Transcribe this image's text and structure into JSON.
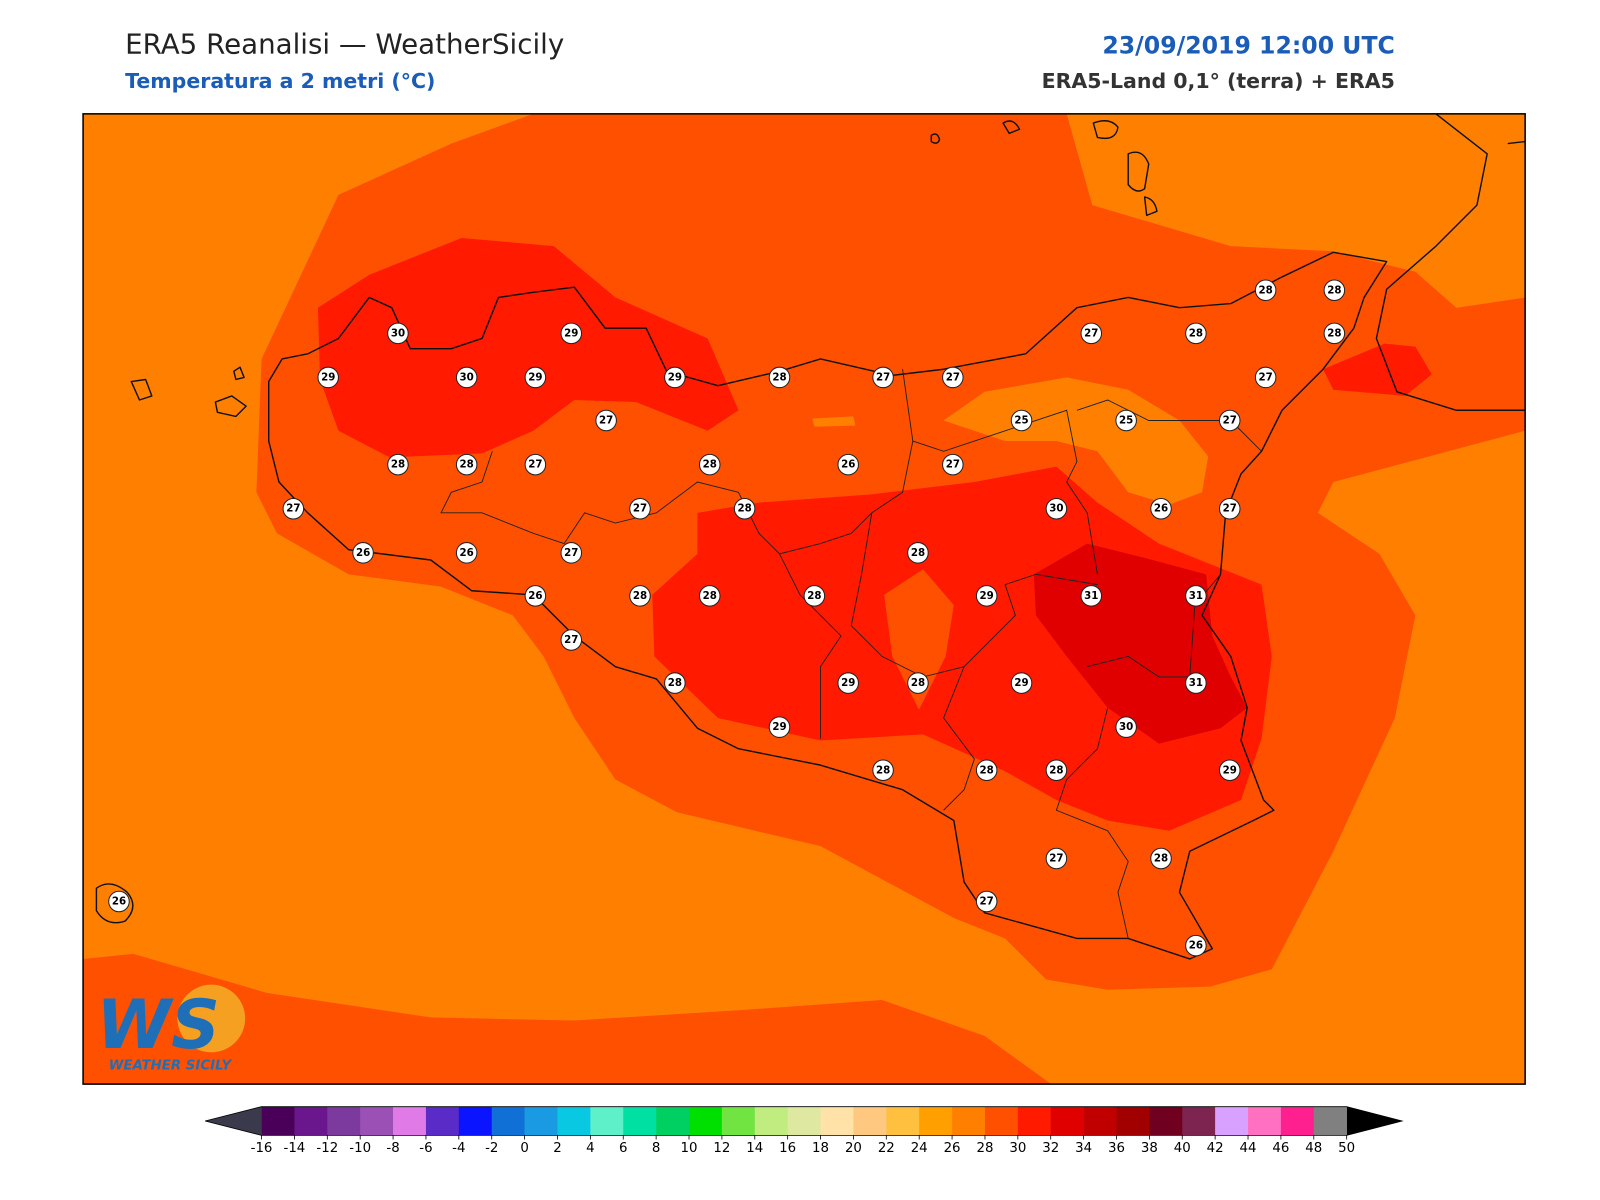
{
  "header": {
    "title": "ERA5 Reanalisi — WeatherSicily",
    "subtitle": "Temperatura a 2 metri (°C)",
    "datetime": "23/09/2019 12:00 UTC",
    "source": "ERA5-Land 0,1° (terra) + ERA5"
  },
  "map": {
    "station_values": [
      30,
      29,
      29,
      30,
      29,
      29,
      28,
      27,
      27,
      27,
      28,
      28,
      28,
      28,
      27,
      27,
      25,
      25,
      27,
      28,
      28,
      27,
      28,
      26,
      27,
      27,
      27,
      28,
      30,
      26,
      27,
      26,
      26,
      27,
      28,
      26,
      28,
      28,
      28,
      29,
      31,
      31,
      27,
      28,
      29,
      28,
      29,
      31,
      30,
      29,
      28,
      28,
      28,
      29,
      27,
      28,
      27,
      26,
      26
    ]
  },
  "logo": {
    "mark": "WS",
    "name": "WEATHER SICILY"
  },
  "colorbar": {
    "ticks": [
      -16,
      -14,
      -12,
      -10,
      -8,
      -6,
      -4,
      -2,
      0,
      2,
      4,
      6,
      8,
      10,
      12,
      14,
      16,
      18,
      20,
      22,
      24,
      26,
      28,
      30,
      32,
      34,
      36,
      38,
      40,
      42,
      44,
      46,
      48,
      50
    ],
    "colors": [
      "#4a0058",
      "#6a168c",
      "#7d3a9e",
      "#9b50b6",
      "#e07ae6",
      "#5a2bc6",
      "#0a14ff",
      "#1070d6",
      "#1a9ae2",
      "#08c8e2",
      "#5ef0c8",
      "#00e0a2",
      "#00d062",
      "#00e000",
      "#72e442",
      "#c0ec80",
      "#dfe8a0",
      "#ffe2a8",
      "#ffc880",
      "#ffc040",
      "#ffa000",
      "#ff8000",
      "#ff5000",
      "#ff1a00",
      "#e00000",
      "#c00000",
      "#a00000",
      "#700020",
      "#7e2450",
      "#d8a0ff",
      "#ff70c0",
      "#ff2090",
      "#808080",
      "#404040"
    ],
    "under_color": "#3a3a4c",
    "over_color": "#000000"
  }
}
